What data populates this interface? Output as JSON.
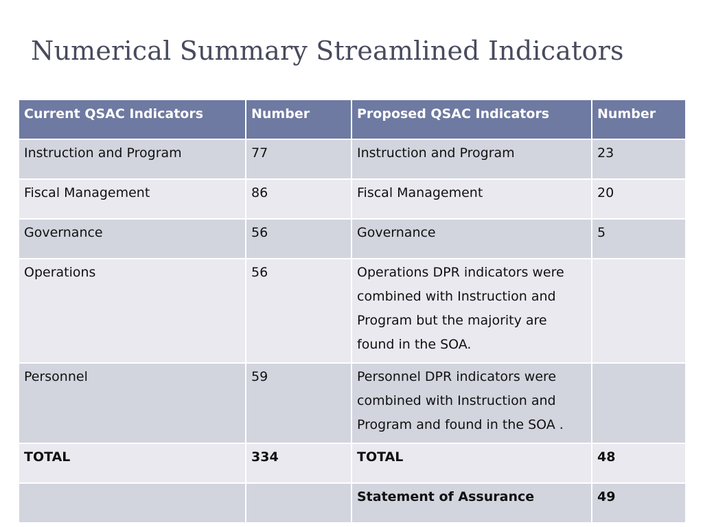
{
  "title": "Numerical Summary Streamlined Indicators",
  "table": {
    "headers": [
      "Current QSAC Indicators",
      "Number",
      "Proposed QSAC Indicators",
      "Number"
    ],
    "rows": [
      [
        "Instruction and Program",
        "77",
        "Instruction  and Program",
        "23"
      ],
      [
        "Fiscal Management",
        "86",
        "Fiscal Management",
        "20"
      ],
      [
        "Governance",
        "56",
        "Governance",
        "5"
      ],
      [
        "Operations",
        "56",
        "Operations DPR indicators were combined with Instruction and Program but the majority are found in the SOA.",
        ""
      ],
      [
        "Personnel",
        "59",
        "Personnel DPR  indicators were combined with Instruction and Program and found  in the SOA .",
        ""
      ],
      [
        "TOTAL",
        "334",
        "TOTAL",
        "48"
      ],
      [
        "",
        "",
        "Statement of Assurance",
        "49"
      ]
    ]
  },
  "colors": {
    "header_bg": "#6e7aa1",
    "row_even_bg": "#d2d4de",
    "row_odd_bg": "#e9e9ef",
    "title_color": "#474b5c"
  }
}
